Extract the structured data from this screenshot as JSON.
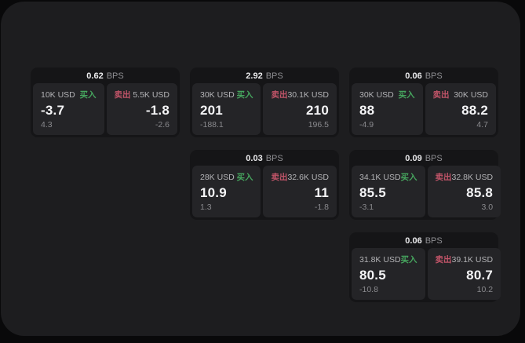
{
  "labels": {
    "buy": "买入",
    "sell": "卖出",
    "bps_unit": "BPS"
  },
  "colors": {
    "buy_green": "#46a55e",
    "sell_red": "#c05468",
    "page_bg": "#1d1d1f",
    "card_bg": "#151517",
    "panel_bg": "#242427"
  },
  "cards": [
    {
      "row": 1,
      "col": 1,
      "bps": "0.62",
      "buy": {
        "amount": "10K USD",
        "value": "-3.7",
        "sub": "4.3"
      },
      "sell": {
        "amount": "5.5K USD",
        "value": "-1.8",
        "sub": "-2.6"
      }
    },
    {
      "row": 1,
      "col": 2,
      "bps": "2.92",
      "buy": {
        "amount": "30K USD",
        "value": "201",
        "sub": "-188.1"
      },
      "sell": {
        "amount": "30.1K USD",
        "value": "210",
        "sub": "196.5"
      }
    },
    {
      "row": 1,
      "col": 3,
      "bps": "0.06",
      "buy": {
        "amount": "30K USD",
        "value": "88",
        "sub": "-4.9"
      },
      "sell": {
        "amount": "30K USD",
        "value": "88.2",
        "sub": "4.7"
      }
    },
    {
      "row": 2,
      "col": 2,
      "bps": "0.03",
      "buy": {
        "amount": "28K USD",
        "value": "10.9",
        "sub": "1.3"
      },
      "sell": {
        "amount": "32.6K USD",
        "value": "11",
        "sub": "-1.8"
      }
    },
    {
      "row": 2,
      "col": 3,
      "bps": "0.09",
      "buy": {
        "amount": "34.1K USD",
        "value": "85.5",
        "sub": "-3.1"
      },
      "sell": {
        "amount": "32.8K USD",
        "value": "85.8",
        "sub": "3.0"
      }
    },
    {
      "row": 3,
      "col": 3,
      "bps": "0.06",
      "buy": {
        "amount": "31.8K USD",
        "value": "80.5",
        "sub": "-10.8"
      },
      "sell": {
        "amount": "39.1K USD",
        "value": "80.7",
        "sub": "10.2"
      }
    }
  ]
}
